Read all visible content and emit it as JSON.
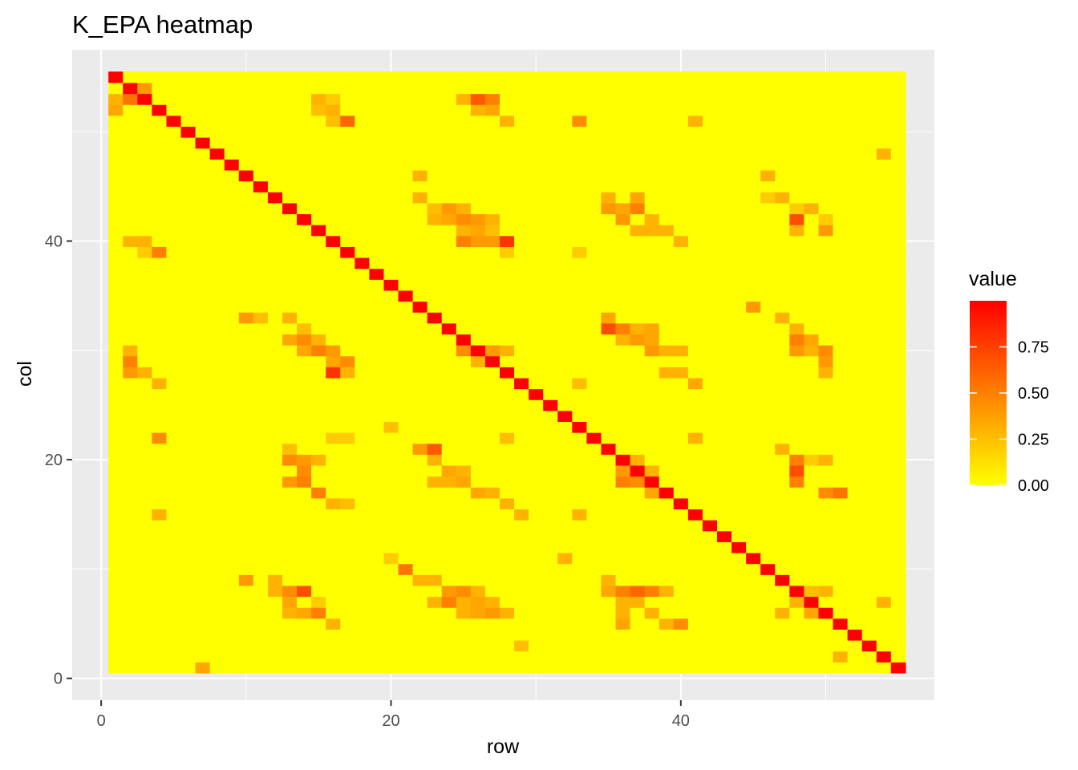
{
  "chart_data": {
    "type": "heatmap",
    "title": "K_EPA heatmap",
    "xlabel": "row",
    "ylabel": "col",
    "n_rows": 55,
    "n_cols": 55,
    "xlim": [
      -2,
      57.5
    ],
    "ylim": [
      -2,
      57.5
    ],
    "x_ticks": [
      0,
      20,
      40
    ],
    "y_ticks": [
      0,
      20,
      40
    ],
    "x_minor": [
      10,
      30,
      50
    ],
    "y_minor": [
      10,
      30,
      50
    ],
    "diagonal_value": 1,
    "background_value": 0,
    "legend": {
      "title": "value",
      "ticks": [
        "0.00",
        "0.25",
        "0.50",
        "0.75"
      ],
      "tick_values": [
        0,
        0.25,
        0.5,
        0.75
      ],
      "min": 0,
      "max": 1,
      "position": "right"
    },
    "colors": {
      "low": "#FFFF00",
      "high": "#FF0000",
      "panel": "#EBEBEB",
      "grid": "#FFFFFF"
    },
    "highlights": [
      [
        2,
        54,
        0.6
      ],
      [
        3,
        54,
        0.4
      ],
      [
        1,
        53,
        0.3
      ],
      [
        2,
        53,
        0.55
      ],
      [
        1,
        52,
        0.35
      ],
      [
        15,
        53,
        0.3
      ],
      [
        16,
        53,
        0.2
      ],
      [
        15,
        52,
        0.25
      ],
      [
        16,
        52,
        0.3
      ],
      [
        17,
        51,
        0.6
      ],
      [
        16,
        51,
        0.25
      ],
      [
        25,
        53,
        0.3
      ],
      [
        26,
        53,
        0.65
      ],
      [
        27,
        53,
        0.5
      ],
      [
        26,
        52,
        0.3
      ],
      [
        27,
        52,
        0.35
      ],
      [
        28,
        51,
        0.3
      ],
      [
        33,
        51,
        0.45
      ],
      [
        41,
        51,
        0.3
      ],
      [
        54,
        48,
        0.3
      ],
      [
        22,
        46,
        0.3
      ],
      [
        22,
        44,
        0.3
      ],
      [
        23,
        43,
        0.25
      ],
      [
        24,
        43,
        0.4
      ],
      [
        25,
        43,
        0.3
      ],
      [
        23,
        42,
        0.3
      ],
      [
        24,
        42,
        0.35
      ],
      [
        25,
        42,
        0.45
      ],
      [
        26,
        42,
        0.4
      ],
      [
        27,
        42,
        0.3
      ],
      [
        25,
        41,
        0.3
      ],
      [
        26,
        41,
        0.35
      ],
      [
        27,
        41,
        0.25
      ],
      [
        25,
        40,
        0.5
      ],
      [
        26,
        40,
        0.4
      ],
      [
        27,
        40,
        0.4
      ],
      [
        28,
        40,
        0.8
      ],
      [
        28,
        39,
        0.2
      ],
      [
        35,
        44,
        0.3
      ],
      [
        35,
        43,
        0.4
      ],
      [
        36,
        43,
        0.35
      ],
      [
        37,
        44,
        0.35
      ],
      [
        37,
        43,
        0.5
      ],
      [
        36,
        42,
        0.4
      ],
      [
        38,
        42,
        0.3
      ],
      [
        37,
        41,
        0.3
      ],
      [
        38,
        41,
        0.3
      ],
      [
        39,
        41,
        0.3
      ],
      [
        40,
        40,
        0.3
      ],
      [
        46,
        46,
        0.3
      ],
      [
        46,
        44,
        0.2
      ],
      [
        47,
        44,
        0.3
      ],
      [
        48,
        43,
        0.2
      ],
      [
        48,
        42,
        0.7
      ],
      [
        49,
        43,
        0.3
      ],
      [
        48,
        41,
        0.3
      ],
      [
        50,
        42,
        0.2
      ],
      [
        50,
        41,
        0.4
      ],
      [
        2,
        40,
        0.3
      ],
      [
        3,
        40,
        0.3
      ],
      [
        4,
        39,
        0.5
      ],
      [
        3,
        39,
        0.2
      ],
      [
        33,
        39,
        0.2
      ],
      [
        10,
        33,
        0.4
      ],
      [
        11,
        33,
        0.25
      ],
      [
        13,
        33,
        0.3
      ],
      [
        14,
        32,
        0.25
      ],
      [
        13,
        31,
        0.35
      ],
      [
        14,
        31,
        0.45
      ],
      [
        15,
        31,
        0.3
      ],
      [
        14,
        30,
        0.35
      ],
      [
        15,
        30,
        0.5
      ],
      [
        16,
        30,
        0.4
      ],
      [
        16,
        29,
        0.35
      ],
      [
        17,
        29,
        0.45
      ],
      [
        16,
        28,
        0.8
      ],
      [
        17,
        28,
        0.3
      ],
      [
        35,
        33,
        0.35
      ],
      [
        35,
        32,
        0.7
      ],
      [
        36,
        32,
        0.5
      ],
      [
        37,
        32,
        0.3
      ],
      [
        38,
        32,
        0.35
      ],
      [
        36,
        31,
        0.3
      ],
      [
        37,
        31,
        0.4
      ],
      [
        38,
        31,
        0.35
      ],
      [
        38,
        30,
        0.4
      ],
      [
        39,
        30,
        0.3
      ],
      [
        40,
        30,
        0.3
      ],
      [
        39,
        28,
        0.3
      ],
      [
        40,
        28,
        0.3
      ],
      [
        41,
        27,
        0.35
      ],
      [
        45,
        34,
        0.4
      ],
      [
        47,
        33,
        0.3
      ],
      [
        48,
        32,
        0.3
      ],
      [
        48,
        31,
        0.5
      ],
      [
        49,
        31,
        0.35
      ],
      [
        48,
        30,
        0.4
      ],
      [
        49,
        30,
        0.3
      ],
      [
        50,
        30,
        0.45
      ],
      [
        50,
        29,
        0.4
      ],
      [
        50,
        28,
        0.3
      ],
      [
        2,
        30,
        0.3
      ],
      [
        2,
        29,
        0.5
      ],
      [
        2,
        28,
        0.4
      ],
      [
        3,
        28,
        0.3
      ],
      [
        4,
        27,
        0.3
      ],
      [
        26,
        29,
        0.3
      ],
      [
        25,
        30,
        0.45
      ],
      [
        27,
        30,
        0.4
      ],
      [
        28,
        30,
        0.3
      ],
      [
        29,
        27,
        0.2
      ],
      [
        33,
        27,
        0.25
      ],
      [
        20,
        23,
        0.25
      ],
      [
        4,
        22,
        0.45
      ],
      [
        16,
        22,
        0.2
      ],
      [
        17,
        22,
        0.2
      ],
      [
        28,
        22,
        0.25
      ],
      [
        41,
        22,
        0.3
      ],
      [
        13,
        21,
        0.25
      ],
      [
        13,
        20,
        0.45
      ],
      [
        14,
        20,
        0.4
      ],
      [
        15,
        20,
        0.3
      ],
      [
        14,
        19,
        0.45
      ],
      [
        14,
        18,
        0.5
      ],
      [
        13,
        18,
        0.4
      ],
      [
        15,
        17,
        0.5
      ],
      [
        16,
        16,
        0.3
      ],
      [
        17,
        16,
        0.25
      ],
      [
        22,
        21,
        0.4
      ],
      [
        23,
        21,
        0.65
      ],
      [
        23,
        20,
        0.3
      ],
      [
        24,
        19,
        0.35
      ],
      [
        25,
        19,
        0.3
      ],
      [
        23,
        18,
        0.3
      ],
      [
        24,
        18,
        0.3
      ],
      [
        25,
        18,
        0.35
      ],
      [
        26,
        17,
        0.35
      ],
      [
        27,
        17,
        0.3
      ],
      [
        28,
        16,
        0.3
      ],
      [
        29,
        15,
        0.3
      ],
      [
        35,
        21,
        0.3
      ],
      [
        36,
        20,
        0.35
      ],
      [
        37,
        20,
        0.3
      ],
      [
        36,
        19,
        0.4
      ],
      [
        38,
        19,
        0.3
      ],
      [
        36,
        18,
        0.5
      ],
      [
        37,
        18,
        0.45
      ],
      [
        38,
        17,
        0.35
      ],
      [
        39,
        17,
        0.4
      ],
      [
        40,
        16,
        0.3
      ],
      [
        47,
        21,
        0.3
      ],
      [
        48,
        20,
        0.5
      ],
      [
        49,
        20,
        0.2
      ],
      [
        50,
        20,
        0.3
      ],
      [
        48,
        19,
        0.7
      ],
      [
        48,
        18,
        0.5
      ],
      [
        50,
        17,
        0.45
      ],
      [
        51,
        17,
        0.55
      ],
      [
        4,
        15,
        0.3
      ],
      [
        33,
        15,
        0.3
      ],
      [
        20,
        11,
        0.2
      ],
      [
        32,
        11,
        0.3
      ],
      [
        21,
        10,
        0.55
      ],
      [
        22,
        9,
        0.3
      ],
      [
        10,
        9,
        0.4
      ],
      [
        12,
        9,
        0.3
      ],
      [
        13,
        8,
        0.45
      ],
      [
        14,
        8,
        0.7
      ],
      [
        12,
        8,
        0.3
      ],
      [
        13,
        7,
        0.35
      ],
      [
        15,
        7,
        0.2
      ],
      [
        13,
        6,
        0.3
      ],
      [
        14,
        6,
        0.35
      ],
      [
        15,
        6,
        0.5
      ],
      [
        16,
        5,
        0.3
      ],
      [
        23,
        9,
        0.3
      ],
      [
        24,
        8,
        0.4
      ],
      [
        25,
        8,
        0.45
      ],
      [
        26,
        8,
        0.3
      ],
      [
        23,
        7,
        0.3
      ],
      [
        24,
        7,
        0.5
      ],
      [
        25,
        7,
        0.3
      ],
      [
        26,
        7,
        0.35
      ],
      [
        27,
        7,
        0.3
      ],
      [
        25,
        6,
        0.3
      ],
      [
        26,
        6,
        0.35
      ],
      [
        27,
        6,
        0.4
      ],
      [
        28,
        6,
        0.3
      ],
      [
        35,
        9,
        0.3
      ],
      [
        35,
        8,
        0.35
      ],
      [
        36,
        8,
        0.5
      ],
      [
        37,
        8,
        0.6
      ],
      [
        38,
        8,
        0.5
      ],
      [
        39,
        8,
        0.3
      ],
      [
        36,
        7,
        0.3
      ],
      [
        37,
        7,
        0.3
      ],
      [
        38,
        6,
        0.3
      ],
      [
        39,
        5,
        0.3
      ],
      [
        40,
        5,
        0.45
      ],
      [
        36,
        6,
        0.3
      ],
      [
        36,
        5,
        0.35
      ],
      [
        47,
        9,
        0.3
      ],
      [
        48,
        8,
        0.5
      ],
      [
        49,
        8,
        0.25
      ],
      [
        50,
        8,
        0.3
      ],
      [
        48,
        7,
        0.3
      ],
      [
        49,
        7,
        0.3
      ],
      [
        47,
        6,
        0.3
      ],
      [
        49,
        6,
        0.35
      ],
      [
        50,
        6,
        0.3
      ],
      [
        54,
        7,
        0.3
      ],
      [
        29,
        3,
        0.25
      ],
      [
        51,
        2,
        0.3
      ],
      [
        7,
        1,
        0.35
      ]
    ]
  }
}
